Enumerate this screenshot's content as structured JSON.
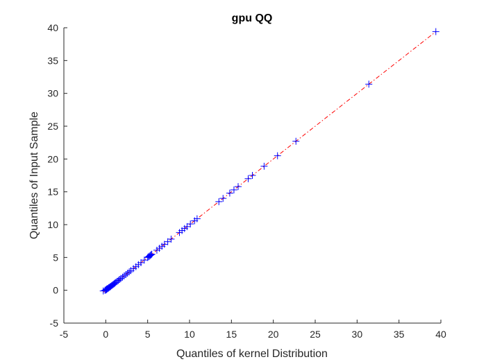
{
  "chart_data": {
    "type": "scatter",
    "title": "gpu QQ",
    "xlabel": "Quantiles of kernel Distribution",
    "ylabel": "Quantiles of Input Sample",
    "xlim": [
      -5,
      40
    ],
    "ylim": [
      -5,
      40
    ],
    "xticks": [
      -5,
      0,
      5,
      10,
      15,
      20,
      25,
      30,
      35,
      40
    ],
    "yticks": [
      -5,
      0,
      5,
      10,
      15,
      20,
      25,
      30,
      35,
      40
    ],
    "grid": false,
    "marker": "+",
    "colors": {
      "marker": "#0000ff",
      "reference_line": "#ff0000",
      "axes": "#262626"
    },
    "reference_line": {
      "style": "dash-dot",
      "from": [
        -0.3,
        -0.3
      ],
      "to": [
        39.4,
        39.4
      ]
    },
    "points": [
      [
        -0.3,
        -0.1
      ],
      [
        -0.1,
        0.0
      ],
      [
        0.0,
        0.05
      ],
      [
        0.05,
        0.1
      ],
      [
        0.1,
        0.15
      ],
      [
        0.15,
        0.2
      ],
      [
        0.2,
        0.25
      ],
      [
        0.3,
        0.3
      ],
      [
        0.35,
        0.4
      ],
      [
        0.45,
        0.45
      ],
      [
        0.5,
        0.5
      ],
      [
        0.6,
        0.6
      ],
      [
        0.7,
        0.7
      ],
      [
        0.8,
        0.8
      ],
      [
        0.9,
        0.9
      ],
      [
        1.0,
        1.0
      ],
      [
        1.1,
        1.1
      ],
      [
        1.2,
        1.2
      ],
      [
        1.35,
        1.35
      ],
      [
        1.5,
        1.5
      ],
      [
        1.65,
        1.65
      ],
      [
        1.8,
        1.8
      ],
      [
        2.0,
        2.0
      ],
      [
        2.2,
        2.2
      ],
      [
        2.4,
        2.4
      ],
      [
        2.6,
        2.6
      ],
      [
        2.8,
        2.8
      ],
      [
        3.0,
        3.0
      ],
      [
        3.3,
        3.3
      ],
      [
        3.6,
        3.6
      ],
      [
        3.9,
        3.9
      ],
      [
        4.2,
        4.2
      ],
      [
        4.6,
        4.6
      ],
      [
        5.0,
        5.0
      ],
      [
        5.1,
        5.1
      ],
      [
        5.2,
        5.2
      ],
      [
        5.3,
        5.3
      ],
      [
        5.4,
        5.4
      ],
      [
        5.5,
        5.5
      ],
      [
        6.1,
        6.1
      ],
      [
        6.4,
        6.4
      ],
      [
        6.7,
        6.7
      ],
      [
        7.0,
        7.0
      ],
      [
        7.4,
        7.4
      ],
      [
        7.8,
        7.8
      ],
      [
        8.8,
        8.8
      ],
      [
        9.1,
        9.1
      ],
      [
        9.4,
        9.4
      ],
      [
        9.7,
        9.7
      ],
      [
        10.1,
        10.1
      ],
      [
        10.6,
        10.6
      ],
      [
        10.9,
        10.9
      ],
      [
        13.5,
        13.5
      ],
      [
        14.0,
        14.0
      ],
      [
        14.8,
        14.8
      ],
      [
        15.3,
        15.3
      ],
      [
        15.8,
        15.8
      ],
      [
        17.0,
        17.0
      ],
      [
        17.5,
        17.5
      ],
      [
        18.9,
        18.9
      ],
      [
        20.5,
        20.5
      ],
      [
        22.7,
        22.7
      ],
      [
        31.4,
        31.4
      ],
      [
        39.4,
        39.4
      ]
    ]
  }
}
